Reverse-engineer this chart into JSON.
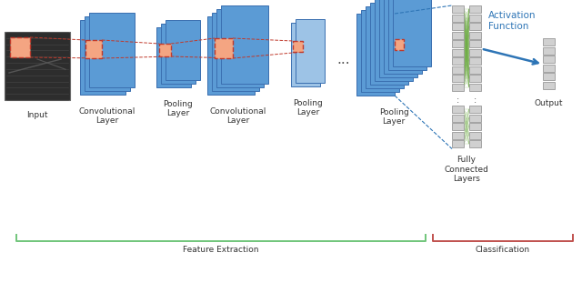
{
  "bg_color": "#ffffff",
  "blue_main": "#5b9bd5",
  "blue_light": "#9dc3e6",
  "blue_mid": "#4472c4",
  "patch_color": "#f4a582",
  "patch_border": "#c0392b",
  "fc_cell_color": "#d0d0d0",
  "fc_cell_border": "#999999",
  "green_line": "#70ad47",
  "blue_arrow": "#2e75b6",
  "bracket_green": "#70c57a",
  "bracket_red": "#c0504d",
  "img_dark": "#3a3a3a",
  "labels": {
    "input": "Input",
    "conv1": "Convolutional\nLayer",
    "pool1": "Pooling\nLayer",
    "conv2": "Convolutional\nLayer",
    "pool2": "Pooling\nLayer",
    "pool3": "Pooling\nLayer",
    "fc": "Fully\nConnected\nLayers",
    "output": "Output",
    "activation": "Activation\nFunction",
    "feature": "Feature Extraction",
    "classification": "Classification",
    "dots": "..."
  },
  "lfs": 6.5,
  "act_fs": 7.5
}
